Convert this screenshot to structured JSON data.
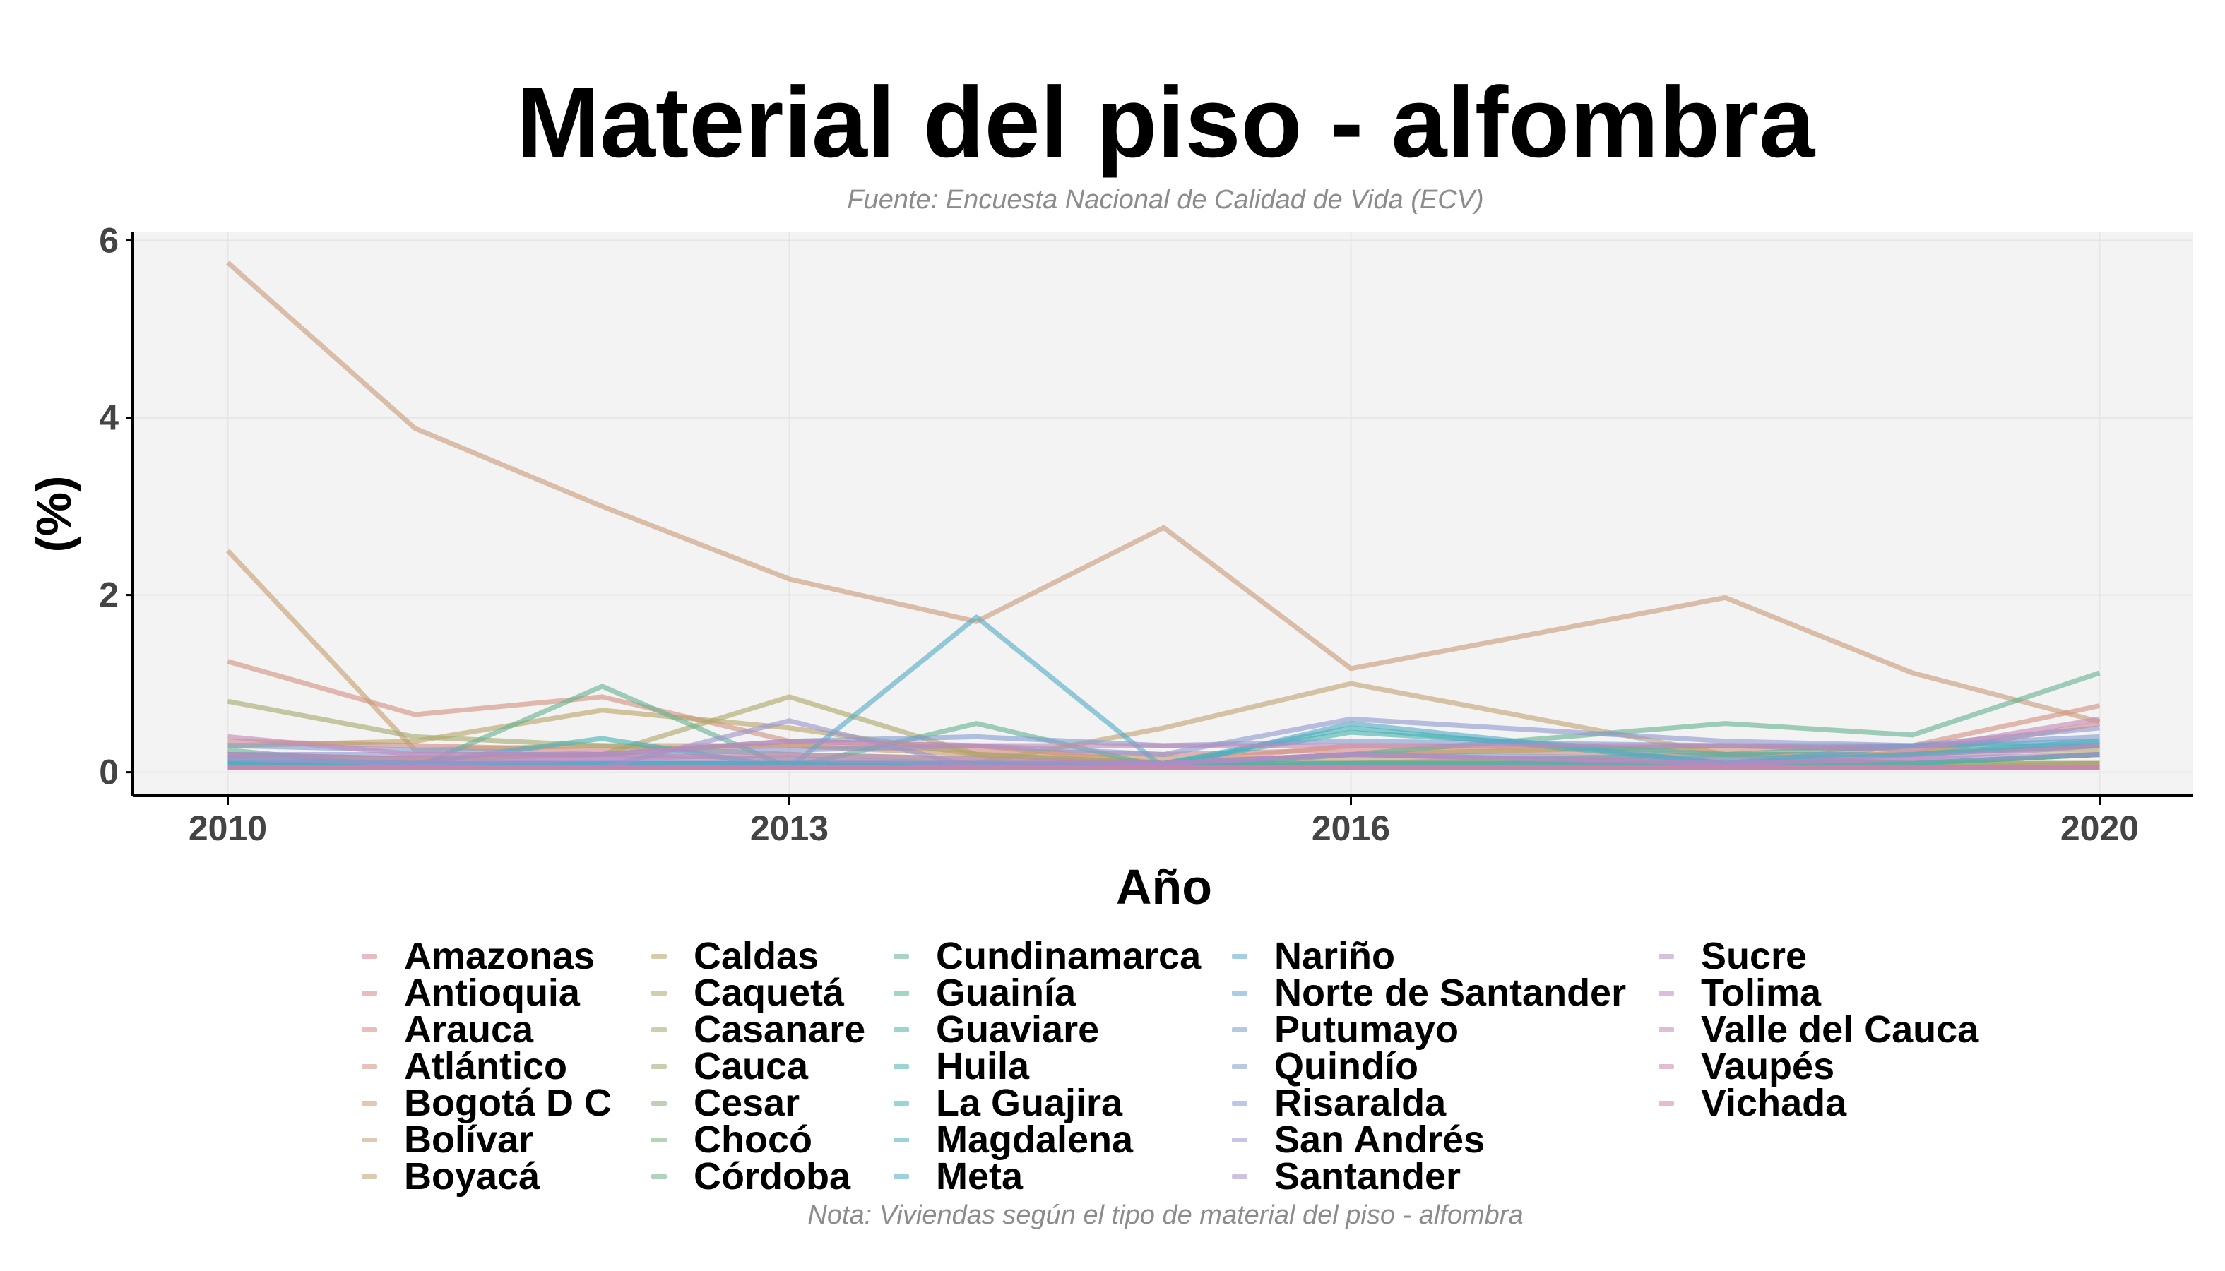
{
  "title": "Material del piso - alfombra",
  "subtitle": "Fuente: Encuesta Nacional de Calidad de Vida (ECV)",
  "caption": "Nota: Viviendas según el tipo de material del piso - alfombra",
  "chart_data": {
    "type": "line",
    "title": "Material del piso - alfombra",
    "subtitle": "Fuente: Encuesta Nacional de Calidad de Vida (ECV)",
    "caption": "Nota: Viviendas según el tipo de material del piso - alfombra",
    "xlabel": "Año",
    "ylabel": "(%)",
    "xlim": [
      2009.5,
      2020.5
    ],
    "ylim": [
      -0.25,
      6.1
    ],
    "x_ticks": [
      2010,
      2013,
      2016,
      2020
    ],
    "y_ticks": [
      0,
      2,
      4,
      6
    ],
    "grid": true,
    "legend_position": "bottom",
    "x": [
      2010,
      2011,
      2012,
      2013,
      2014,
      2015,
      2016,
      2018,
      2019,
      2020
    ],
    "series": [
      {
        "name": "Amazonas",
        "color": "#D6848F",
        "values": [
          0.05,
          0.05,
          0.05,
          0.1,
          0.05,
          0.05,
          0.1,
          0.1,
          0.05,
          0.1
        ]
      },
      {
        "name": "Antioquia",
        "color": "#D5878A",
        "values": [
          0.35,
          0.3,
          0.25,
          0.3,
          0.25,
          0.2,
          0.25,
          0.2,
          0.2,
          0.55
        ]
      },
      {
        "name": "Arauca",
        "color": "#D48B84",
        "values": [
          0.05,
          0.05,
          0.05,
          0.05,
          0.05,
          0.05,
          0.05,
          0.05,
          0.05,
          0.05
        ]
      },
      {
        "name": "Atlántico",
        "color": "#D38F7F",
        "values": [
          1.25,
          0.65,
          0.85,
          0.35,
          0.3,
          0.1,
          0.3,
          0.25,
          0.3,
          0.75
        ]
      },
      {
        "name": "Bogotá D C",
        "color": "#C99A77",
        "values": [
          5.75,
          3.88,
          3.0,
          2.18,
          1.7,
          2.76,
          1.17,
          1.97,
          1.12,
          0.57
        ]
      },
      {
        "name": "Bolívar",
        "color": "#C69D6F",
        "values": [
          2.5,
          0.25,
          0.3,
          0.3,
          0.2,
          0.15,
          0.15,
          0.15,
          0.1,
          0.1
        ]
      },
      {
        "name": "Boyacá",
        "color": "#C2A06E",
        "values": [
          0.2,
          0.15,
          0.2,
          0.15,
          0.1,
          0.5,
          1.0,
          0.2,
          0.2,
          0.3
        ]
      },
      {
        "name": "Caldas",
        "color": "#B7A262",
        "values": [
          0.3,
          0.35,
          0.7,
          0.5,
          0.2,
          0.1,
          0.2,
          0.3,
          0.25,
          0.25
        ]
      },
      {
        "name": "Caquetá",
        "color": "#ABA566",
        "values": [
          0.2,
          0.15,
          0.2,
          0.85,
          0.2,
          0.1,
          0.1,
          0.1,
          0.1,
          0.2
        ]
      },
      {
        "name": "Casanare",
        "color": "#A3A86A",
        "values": [
          0.8,
          0.4,
          0.3,
          0.2,
          0.15,
          0.1,
          0.1,
          0.2,
          0.1,
          0.2
        ]
      },
      {
        "name": "Cauca",
        "color": "#98AA6F",
        "values": [
          0.1,
          0.1,
          0.1,
          0.1,
          0.05,
          0.05,
          0.1,
          0.1,
          0.1,
          0.1
        ]
      },
      {
        "name": "Cesar",
        "color": "#8AAC75",
        "values": [
          0.1,
          0.05,
          0.05,
          0.05,
          0.05,
          0.05,
          0.05,
          0.05,
          0.05,
          0.05
        ]
      },
      {
        "name": "Chocó",
        "color": "#7CAE7C",
        "values": [
          0.05,
          0.05,
          0.05,
          0.05,
          0.05,
          0.05,
          0.05,
          0.05,
          0.05,
          0.05
        ]
      },
      {
        "name": "Córdoba",
        "color": "#6FAF86",
        "values": [
          0.1,
          0.1,
          0.1,
          0.1,
          0.1,
          0.05,
          0.1,
          0.1,
          0.1,
          0.2
        ]
      },
      {
        "name": "Cundinamarca",
        "color": "#62B190",
        "values": [
          0.25,
          0.05,
          0.97,
          0.05,
          0.55,
          0.05,
          0.2,
          0.55,
          0.42,
          1.12
        ]
      },
      {
        "name": "Guainía",
        "color": "#55B298",
        "values": [
          0.05,
          0.05,
          0.05,
          0.05,
          0.05,
          0.05,
          0.05,
          0.05,
          0.05,
          0.05
        ]
      },
      {
        "name": "Guaviare",
        "color": "#4DB3A2",
        "values": [
          0.05,
          0.05,
          0.05,
          0.05,
          0.05,
          0.05,
          0.05,
          0.05,
          0.05,
          0.05
        ]
      },
      {
        "name": "Huila",
        "color": "#46B2AC",
        "values": [
          0.1,
          0.1,
          0.1,
          0.1,
          0.1,
          0.1,
          0.45,
          0.2,
          0.3,
          0.3
        ]
      },
      {
        "name": "La Guajira",
        "color": "#45B0B5",
        "values": [
          0.15,
          0.1,
          0.38,
          0.05,
          0.1,
          0.1,
          0.5,
          0.1,
          0.2,
          0.35
        ]
      },
      {
        "name": "Magdalena",
        "color": "#49ADBD",
        "values": [
          0.1,
          0.1,
          0.1,
          0.1,
          0.1,
          0.1,
          0.1,
          0.1,
          0.1,
          0.2
        ]
      },
      {
        "name": "Meta",
        "color": "#51AAC4",
        "values": [
          0.1,
          0.1,
          0.1,
          0.05,
          1.75,
          0.05,
          0.55,
          0.1,
          0.3,
          0.35
        ]
      },
      {
        "name": "Nariño",
        "color": "#5AA7CA",
        "values": [
          0.05,
          0.05,
          0.05,
          0.05,
          0.05,
          0.05,
          0.05,
          0.05,
          0.05,
          0.05
        ]
      },
      {
        "name": "Norte de Santander",
        "color": "#65A3CD",
        "values": [
          0.15,
          0.1,
          0.1,
          0.1,
          0.1,
          0.1,
          0.2,
          0.15,
          0.2,
          0.3
        ]
      },
      {
        "name": "Putumayo",
        "color": "#729FCF",
        "values": [
          0.05,
          0.05,
          0.05,
          0.05,
          0.05,
          0.05,
          0.05,
          0.05,
          0.05,
          0.05
        ]
      },
      {
        "name": "Quindío",
        "color": "#7F9BD0",
        "values": [
          0.3,
          0.25,
          0.2,
          0.35,
          0.4,
          0.3,
          0.35,
          0.3,
          0.3,
          0.4
        ]
      },
      {
        "name": "Risaralda",
        "color": "#8D97CF",
        "values": [
          0.2,
          0.2,
          0.2,
          0.25,
          0.3,
          0.2,
          0.6,
          0.35,
          0.3,
          0.5
        ]
      },
      {
        "name": "San Andrés",
        "color": "#9A93CD",
        "values": [
          0.05,
          0.05,
          0.05,
          0.58,
          0.05,
          0.05,
          0.05,
          0.05,
          0.05,
          0.05
        ]
      },
      {
        "name": "Santander",
        "color": "#A68FCA",
        "values": [
          0.15,
          0.1,
          0.15,
          0.15,
          0.1,
          0.1,
          0.2,
          0.1,
          0.15,
          0.2
        ]
      },
      {
        "name": "Sucre",
        "color": "#B18CC5",
        "values": [
          0.05,
          0.05,
          0.05,
          0.05,
          0.05,
          0.05,
          0.05,
          0.05,
          0.05,
          0.05
        ]
      },
      {
        "name": "Tolima",
        "color": "#BB89BF",
        "values": [
          0.2,
          0.15,
          0.15,
          0.2,
          0.15,
          0.1,
          0.2,
          0.1,
          0.15,
          0.3
        ]
      },
      {
        "name": "Valle del Cauca",
        "color": "#C487B7",
        "values": [
          0.4,
          0.2,
          0.2,
          0.35,
          0.3,
          0.3,
          0.3,
          0.3,
          0.25,
          0.6
        ]
      },
      {
        "name": "Vaupés",
        "color": "#CC85AF",
        "values": [
          0.05,
          0.05,
          0.05,
          0.05,
          0.05,
          0.05,
          0.05,
          0.05,
          0.05,
          0.05
        ]
      },
      {
        "name": "Vichada",
        "color": "#D184A5",
        "values": [
          0.05,
          0.05,
          0.05,
          0.05,
          0.05,
          0.05,
          0.05,
          0.05,
          0.05,
          0.05
        ]
      }
    ]
  }
}
